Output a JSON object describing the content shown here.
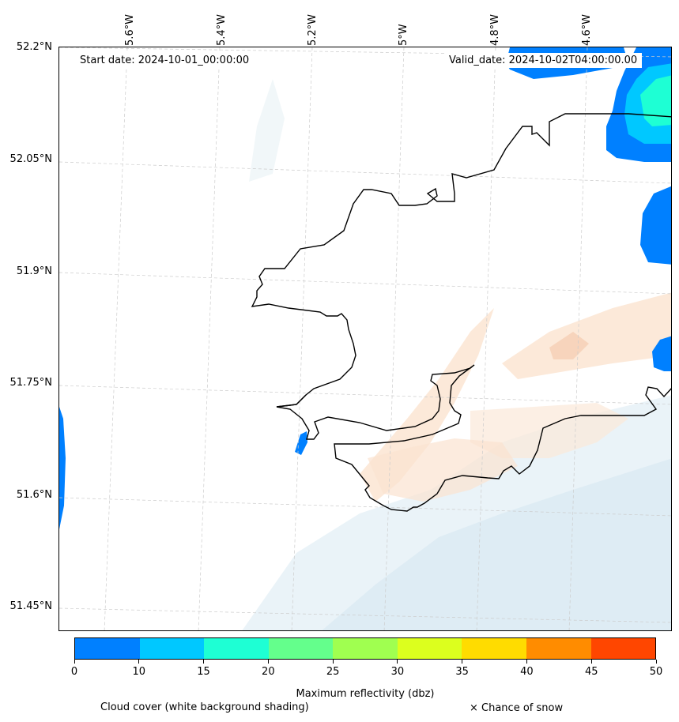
{
  "map": {
    "start_date": "Start date: 2024-10-01_00:00:00",
    "valid_date": "Valid_date: 2024-10-02T04:00:00.00",
    "lat_labels": [
      "52.2°N",
      "52.05°N",
      "51.9°N",
      "51.75°N",
      "51.6°N",
      "51.45°N"
    ],
    "lon_labels": [
      "5.6°W",
      "5.4°W",
      "5.2°W",
      "5°W",
      "4.8°W",
      "4.6°W"
    ],
    "colors": {
      "coastline": "#000000",
      "gridline": "#cccccc",
      "cloud_shade": "#e3eff5",
      "light_reflectivity": "#fbe3d0"
    }
  },
  "colorbar": {
    "title": "Maximum reflectivity (dbz)",
    "tick_labels": [
      "0",
      "10",
      "15",
      "20",
      "25",
      "30",
      "35",
      "40",
      "45",
      "50"
    ],
    "colors": [
      "#0080ff",
      "#00c8ff",
      "#1effd4",
      "#64ff8c",
      "#a0ff50",
      "#dcff1e",
      "#ffdc00",
      "#ff8c00",
      "#ff4600"
    ]
  },
  "legend": {
    "cloud_cover": "Cloud cover (white background shading)",
    "snow": "× Chance of snow"
  }
}
